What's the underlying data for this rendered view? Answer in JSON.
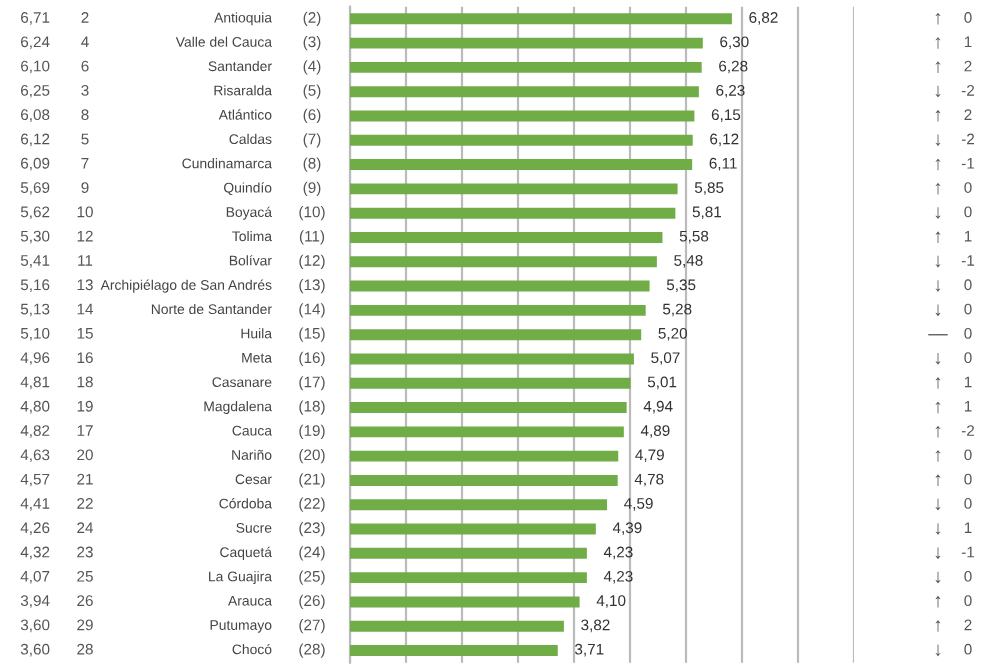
{
  "chart_data": {
    "type": "bar",
    "orientation": "horizontal",
    "categories": [
      "Antioquia",
      "Valle del Cauca",
      "Santander",
      "Risaralda",
      "Atlántico",
      "Caldas",
      "Cundinamarca",
      "Quindío",
      "Boyacá",
      "Tolima",
      "Bolívar",
      "Archipiélago de San Andrés",
      "Norte de Santander",
      "Huila",
      "Meta",
      "Casanare",
      "Magdalena",
      "Cauca",
      "Nariño",
      "Cesar",
      "Córdoba",
      "Sucre",
      "Caquetá",
      "La Guajira",
      "Arauca",
      "Putumayo",
      "Chocó"
    ],
    "values": [
      6.82,
      6.3,
      6.28,
      6.23,
      6.15,
      6.12,
      6.11,
      5.85,
      5.81,
      5.58,
      5.48,
      5.35,
      5.28,
      5.2,
      5.07,
      5.01,
      4.94,
      4.89,
      4.79,
      4.78,
      4.59,
      4.39,
      4.23,
      4.23,
      4.1,
      3.82,
      3.71
    ],
    "value_labels": [
      "6,82",
      "6,30",
      "6,28",
      "6,23",
      "6,15",
      "6,12",
      "6,11",
      "5,85",
      "5,81",
      "5,58",
      "5,48",
      "5,35",
      "5,28",
      "5,20",
      "5,07",
      "5,01",
      "4,94",
      "4,89",
      "4,79",
      "4,78",
      "4,59",
      "4,39",
      "4,23",
      "4,23",
      "4,10",
      "3,82",
      "3,71"
    ],
    "color": "#70ad47",
    "xlim": [
      0,
      9
    ],
    "xticks": [
      {
        "value": 0,
        "label": null
      },
      {
        "value": 1,
        "label": null
      },
      {
        "value": 2,
        "label": null
      },
      {
        "value": 3,
        "label": null
      },
      {
        "value": 4,
        "label": null
      },
      {
        "value": 5,
        "label": null
      },
      {
        "value": 6,
        "label": null
      },
      {
        "value": 7,
        "label": null
      },
      {
        "value": 8,
        "label": null
      },
      {
        "value": 9,
        "label": null
      }
    ],
    "grid": "x",
    "tick_labels": "y",
    "annotations": [
      "6,71",
      "2",
      "(2)",
      "↑",
      "0",
      "6,24",
      "4",
      "(3)",
      "↑",
      "1",
      "6,10",
      "6",
      "(4)",
      "↑",
      "2",
      "6,25",
      "3",
      "(5)",
      "↓",
      "-2",
      "6,08",
      "8",
      "(6)",
      "↑",
      "2",
      "6,12",
      "5",
      "(7)",
      "↓",
      "-2",
      "6,09",
      "7",
      "(8)",
      "↑",
      "-1",
      "5,69",
      "9",
      "(9)",
      "↑",
      "0",
      "5,62",
      "10",
      "(10)",
      "↓",
      "0",
      "5,30",
      "12",
      "(11)",
      "↑",
      "1",
      "5,41",
      "11",
      "(12)",
      "↓",
      "-1",
      "5,16",
      "13",
      "(13)",
      "↓",
      "0",
      "5,13",
      "14",
      "(14)",
      "↓",
      "0",
      "5,10",
      "15",
      "(15)",
      "—",
      "0",
      "4,96",
      "16",
      "(16)",
      "↓",
      "0",
      "4,81",
      "18",
      "(17)",
      "↑",
      "1",
      "4,80",
      "19",
      "(18)",
      "↑",
      "1",
      "4,82",
      "17",
      "(19)",
      "↑",
      "-2",
      "4,63",
      "20",
      "(20)",
      "↑",
      "0",
      "4,57",
      "21",
      "(21)",
      "↑",
      "0",
      "4,41",
      "22",
      "(22)",
      "↓",
      "0",
      "4,26",
      "24",
      "(23)",
      "↓",
      "1",
      "4,32",
      "23",
      "(24)",
      "↓",
      "-1",
      "4,07",
      "25",
      "(25)",
      "↓",
      "0",
      "3,94",
      "26",
      "(26)",
      "↑",
      "0",
      "3,60",
      "29",
      "(27)",
      "↑",
      "2",
      "3,60",
      "28",
      "(28)",
      "↓",
      "0"
    ]
  }
}
